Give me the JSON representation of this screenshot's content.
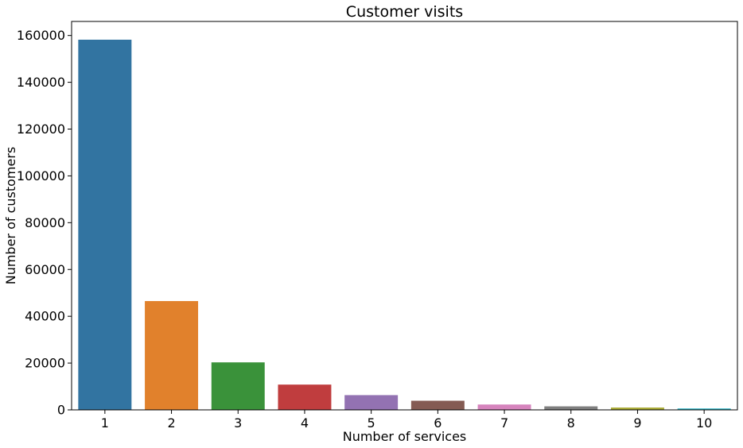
{
  "chart_data": {
    "type": "bar",
    "title": "Customer visits",
    "xlabel": "Number of services",
    "ylabel": "Number of customers",
    "categories": [
      "1",
      "2",
      "3",
      "4",
      "5",
      "6",
      "7",
      "8",
      "9",
      "10"
    ],
    "values": [
      158200,
      46500,
      20300,
      10800,
      6300,
      3900,
      2300,
      1500,
      1000,
      600
    ],
    "colors": [
      "#3274a1",
      "#e1812c",
      "#3a923a",
      "#c03d3e",
      "#9372b2",
      "#845b53",
      "#d684bd",
      "#7f7f7f",
      "#a9aa35",
      "#2eb3c2"
    ],
    "ylim": [
      0,
      166000
    ],
    "yticks": [
      0,
      20000,
      40000,
      60000,
      80000,
      100000,
      120000,
      140000,
      160000
    ],
    "grid": false,
    "legend": "none"
  }
}
